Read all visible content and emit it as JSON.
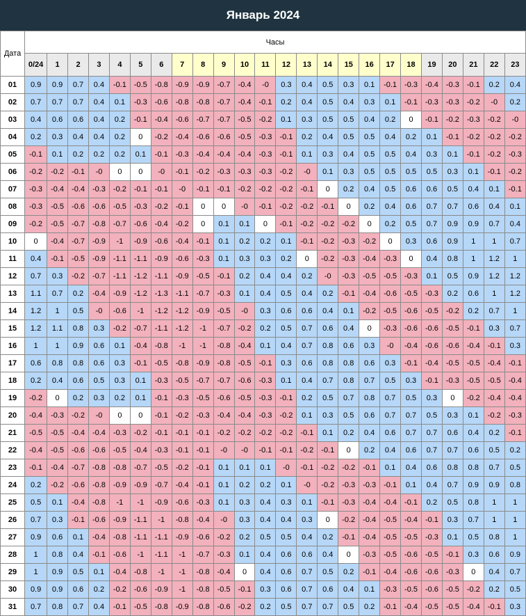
{
  "title": "Январь 2024",
  "date_header": "Дата",
  "hours_header": "Часы",
  "hours": [
    "0/24",
    "1",
    "2",
    "3",
    "4",
    "5",
    "6",
    "7",
    "8",
    "9",
    "10",
    "11",
    "12",
    "13",
    "14",
    "15",
    "16",
    "17",
    "18",
    "19",
    "20",
    "21",
    "22",
    "23"
  ],
  "highlighted_hours": [
    "7",
    "8",
    "9",
    "10",
    "11",
    "12",
    "13",
    "14",
    "15",
    "16",
    "17",
    "18"
  ],
  "colors": {
    "title_background": "#1f3440",
    "positive": "#b6d7f7",
    "negative": "#f2b1bc",
    "zero": "#ffffff",
    "highlight_hour": "#ffffcc",
    "hour_header": "#eaeaea"
  },
  "rows": [
    {
      "date": "01",
      "values": [
        "0.9",
        "0.9",
        "0.7",
        "0.4",
        "-0.1",
        "-0.5",
        "-0.8",
        "-0.9",
        "-0.9",
        "-0.7",
        "-0.4",
        "-0",
        "0.3",
        "0.4",
        "0.5",
        "0.3",
        "0.1",
        "-0.1",
        "-0.3",
        "-0.4",
        "-0.3",
        "-0.1",
        "0.2",
        "0.4"
      ]
    },
    {
      "date": "02",
      "values": [
        "0.7",
        "0.7",
        "0.7",
        "0.4",
        "0.1",
        "-0.3",
        "-0.6",
        "-0.8",
        "-0.8",
        "-0.7",
        "-0.4",
        "-0.1",
        "0.2",
        "0.4",
        "0.5",
        "0.4",
        "0.3",
        "0.1",
        "-0.1",
        "-0.3",
        "-0.3",
        "-0.2",
        "-0",
        "0.2"
      ]
    },
    {
      "date": "03",
      "values": [
        "0.4",
        "0.6",
        "0.6",
        "0.4",
        "0.2",
        "-0.1",
        "-0.4",
        "-0.6",
        "-0.7",
        "-0.7",
        "-0.5",
        "-0.2",
        "0.1",
        "0.3",
        "0.5",
        "0.5",
        "0.4",
        "0.2",
        "0",
        "-0.1",
        "-0.2",
        "-0.3",
        "-0.2",
        "-0"
      ]
    },
    {
      "date": "04",
      "values": [
        "0.2",
        "0.3",
        "0.4",
        "0.4",
        "0.2",
        "0",
        "-0.2",
        "-0.4",
        "-0.6",
        "-0.6",
        "-0.5",
        "-0.3",
        "-0.1",
        "0.2",
        "0.4",
        "0.5",
        "0.5",
        "0.4",
        "0.2",
        "0.1",
        "-0.1",
        "-0.2",
        "-0.2",
        "-0.2"
      ]
    },
    {
      "date": "05",
      "values": [
        "-0.1",
        "0.1",
        "0.2",
        "0.2",
        "0.2",
        "0.1",
        "-0.1",
        "-0.3",
        "-0.4",
        "-0.4",
        "-0.4",
        "-0.3",
        "-0.1",
        "0.1",
        "0.3",
        "0.4",
        "0.5",
        "0.5",
        "0.4",
        "0.3",
        "0.1",
        "-0.1",
        "-0.2",
        "-0.3"
      ]
    },
    {
      "date": "06",
      "values": [
        "-0.2",
        "-0.2",
        "-0.1",
        "-0",
        "0",
        "0",
        "-0",
        "-0.1",
        "-0.2",
        "-0.3",
        "-0.3",
        "-0.3",
        "-0.2",
        "-0",
        "0.1",
        "0.3",
        "0.5",
        "0.5",
        "0.5",
        "0.5",
        "0.3",
        "0.1",
        "-0.1",
        "-0.2"
      ]
    },
    {
      "date": "07",
      "values": [
        "-0.3",
        "-0.4",
        "-0.4",
        "-0.3",
        "-0.2",
        "-0.1",
        "-0.1",
        "-0",
        "-0.1",
        "-0.1",
        "-0.2",
        "-0.2",
        "-0.2",
        "-0.1",
        "0",
        "0.2",
        "0.4",
        "0.5",
        "0.6",
        "0.6",
        "0.5",
        "0.4",
        "0.1",
        "-0.1"
      ]
    },
    {
      "date": "08",
      "values": [
        "-0.3",
        "-0.5",
        "-0.6",
        "-0.6",
        "-0.5",
        "-0.3",
        "-0.2",
        "-0.1",
        "0",
        "0",
        "-0",
        "-0.1",
        "-0.2",
        "-0.2",
        "-0.1",
        "0",
        "0.2",
        "0.4",
        "0.6",
        "0.7",
        "0.7",
        "0.6",
        "0.4",
        "0.1"
      ]
    },
    {
      "date": "09",
      "values": [
        "-0.2",
        "-0.5",
        "-0.7",
        "-0.8",
        "-0.7",
        "-0.6",
        "-0.4",
        "-0.2",
        "0",
        "0.1",
        "0.1",
        "0",
        "-0.1",
        "-0.2",
        "-0.2",
        "-0.2",
        "0",
        "0.2",
        "0.5",
        "0.7",
        "0.9",
        "0.9",
        "0.7",
        "0.4"
      ]
    },
    {
      "date": "10",
      "values": [
        "0",
        "-0.4",
        "-0.7",
        "-0.9",
        "-1",
        "-0.9",
        "-0.6",
        "-0.4",
        "-0.1",
        "0.1",
        "0.2",
        "0.2",
        "0.1",
        "-0.1",
        "-0.2",
        "-0.3",
        "-0.2",
        "0",
        "0.3",
        "0.6",
        "0.9",
        "1",
        "1",
        "0.7"
      ]
    },
    {
      "date": "11",
      "values": [
        "0.4",
        "-0.1",
        "-0.5",
        "-0.9",
        "-1.1",
        "-1.1",
        "-0.9",
        "-0.6",
        "-0.3",
        "0.1",
        "0.3",
        "0.3",
        "0.2",
        "0",
        "-0.2",
        "-0.3",
        "-0.4",
        "-0.3",
        "0",
        "0.4",
        "0.8",
        "1",
        "1.2",
        "1"
      ]
    },
    {
      "date": "12",
      "values": [
        "0.7",
        "0.3",
        "-0.2",
        "-0.7",
        "-1.1",
        "-1.2",
        "-1.1",
        "-0.9",
        "-0.5",
        "-0.1",
        "0.2",
        "0.4",
        "0.4",
        "0.2",
        "-0",
        "-0.3",
        "-0.5",
        "-0.5",
        "-0.3",
        "0.1",
        "0.5",
        "0.9",
        "1.2",
        "1.2"
      ]
    },
    {
      "date": "13",
      "values": [
        "1.1",
        "0.7",
        "0.2",
        "-0.4",
        "-0.9",
        "-1.2",
        "-1.3",
        "-1.1",
        "-0.7",
        "-0.3",
        "0.1",
        "0.4",
        "0.5",
        "0.4",
        "0.2",
        "-0.1",
        "-0.4",
        "-0.6",
        "-0.5",
        "-0.3",
        "0.2",
        "0.6",
        "1",
        "1.2"
      ]
    },
    {
      "date": "14",
      "values": [
        "1.2",
        "1",
        "0.5",
        "-0",
        "-0.6",
        "-1",
        "-1.2",
        "-1.2",
        "-0.9",
        "-0.5",
        "-0",
        "0.3",
        "0.6",
        "0.6",
        "0.4",
        "0.1",
        "-0.2",
        "-0.5",
        "-0.6",
        "-0.5",
        "-0.2",
        "0.2",
        "0.7",
        "1"
      ]
    },
    {
      "date": "15",
      "values": [
        "1.2",
        "1.1",
        "0.8",
        "0.3",
        "-0.2",
        "-0.7",
        "-1.1",
        "-1.2",
        "-1",
        "-0.7",
        "-0.2",
        "0.2",
        "0.5",
        "0.7",
        "0.6",
        "0.4",
        "0",
        "-0.3",
        "-0.6",
        "-0.6",
        "-0.5",
        "-0.1",
        "0.3",
        "0.7"
      ]
    },
    {
      "date": "16",
      "values": [
        "1",
        "1",
        "0.9",
        "0.6",
        "0.1",
        "-0.4",
        "-0.8",
        "-1",
        "-1",
        "-0.8",
        "-0.4",
        "0.1",
        "0.4",
        "0.7",
        "0.8",
        "0.6",
        "0.3",
        "-0",
        "-0.4",
        "-0.6",
        "-0.6",
        "-0.4",
        "-0.1",
        "0.3"
      ]
    },
    {
      "date": "17",
      "values": [
        "0.6",
        "0.8",
        "0.8",
        "0.6",
        "0.3",
        "-0.1",
        "-0.5",
        "-0.8",
        "-0.9",
        "-0.8",
        "-0.5",
        "-0.1",
        "0.3",
        "0.6",
        "0.8",
        "0.8",
        "0.6",
        "0.3",
        "-0.1",
        "-0.4",
        "-0.5",
        "-0.5",
        "-0.4",
        "-0.1"
      ]
    },
    {
      "date": "18",
      "values": [
        "0.2",
        "0.4",
        "0.6",
        "0.5",
        "0.3",
        "0.1",
        "-0.3",
        "-0.5",
        "-0.7",
        "-0.7",
        "-0.6",
        "-0.3",
        "0.1",
        "0.4",
        "0.7",
        "0.8",
        "0.7",
        "0.5",
        "0.3",
        "-0.1",
        "-0.3",
        "-0.5",
        "-0.5",
        "-0.4"
      ]
    },
    {
      "date": "19",
      "values": [
        "-0.2",
        "0",
        "0.2",
        "0.3",
        "0.2",
        "0.1",
        "-0.1",
        "-0.3",
        "-0.5",
        "-0.6",
        "-0.5",
        "-0.3",
        "-0.1",
        "0.2",
        "0.5",
        "0.7",
        "0.8",
        "0.7",
        "0.5",
        "0.3",
        "0",
        "-0.2",
        "-0.4",
        "-0.4"
      ]
    },
    {
      "date": "20",
      "values": [
        "-0.4",
        "-0.3",
        "-0.2",
        "-0",
        "0",
        "0",
        "-0.1",
        "-0.2",
        "-0.3",
        "-0.4",
        "-0.4",
        "-0.3",
        "-0.2",
        "0.1",
        "0.3",
        "0.5",
        "0.6",
        "0.7",
        "0.7",
        "0.5",
        "0.3",
        "0.1",
        "-0.2",
        "-0.3"
      ]
    },
    {
      "date": "21",
      "values": [
        "-0.5",
        "-0.5",
        "-0.4",
        "-0.4",
        "-0.3",
        "-0.2",
        "-0.1",
        "-0.1",
        "-0.1",
        "-0.2",
        "-0.2",
        "-0.2",
        "-0.2",
        "-0.1",
        "0.1",
        "0.2",
        "0.4",
        "0.6",
        "0.7",
        "0.7",
        "0.6",
        "0.4",
        "0.2",
        "-0.1"
      ]
    },
    {
      "date": "22",
      "values": [
        "-0.4",
        "-0.5",
        "-0.6",
        "-0.6",
        "-0.5",
        "-0.4",
        "-0.3",
        "-0.1",
        "-0.1",
        "-0",
        "-0",
        "-0.1",
        "-0.1",
        "-0.2",
        "-0.1",
        "0",
        "0.2",
        "0.4",
        "0.6",
        "0.7",
        "0.7",
        "0.6",
        "0.5",
        "0.2"
      ]
    },
    {
      "date": "23",
      "values": [
        "-0.1",
        "-0.4",
        "-0.7",
        "-0.8",
        "-0.8",
        "-0.7",
        "-0.5",
        "-0.2",
        "-0.1",
        "0.1",
        "0.1",
        "0.1",
        "-0",
        "-0.1",
        "-0.2",
        "-0.2",
        "-0.1",
        "0.1",
        "0.4",
        "0.6",
        "0.8",
        "0.8",
        "0.7",
        "0.5"
      ]
    },
    {
      "date": "24",
      "values": [
        "0.2",
        "-0.2",
        "-0.6",
        "-0.8",
        "-0.9",
        "-0.9",
        "-0.7",
        "-0.4",
        "-0.1",
        "0.1",
        "0.2",
        "0.2",
        "0.1",
        "-0",
        "-0.2",
        "-0.3",
        "-0.3",
        "-0.1",
        "0.1",
        "0.4",
        "0.7",
        "0.9",
        "0.9",
        "0.8"
      ]
    },
    {
      "date": "25",
      "values": [
        "0.5",
        "0.1",
        "-0.4",
        "-0.8",
        "-1",
        "-1",
        "-0.9",
        "-0.6",
        "-0.3",
        "0.1",
        "0.3",
        "0.4",
        "0.3",
        "0.1",
        "-0.1",
        "-0.3",
        "-0.4",
        "-0.4",
        "-0.1",
        "0.2",
        "0.5",
        "0.8",
        "1",
        "1"
      ]
    },
    {
      "date": "26",
      "values": [
        "0.7",
        "0.3",
        "-0.1",
        "-0.6",
        "-0.9",
        "-1.1",
        "-1",
        "-0.8",
        "-0.4",
        "-0",
        "0.3",
        "0.4",
        "0.4",
        "0.3",
        "0",
        "-0.2",
        "-0.4",
        "-0.5",
        "-0.4",
        "-0.1",
        "0.3",
        "0.7",
        "1",
        "1"
      ]
    },
    {
      "date": "27",
      "values": [
        "0.9",
        "0.6",
        "0.1",
        "-0.4",
        "-0.8",
        "-1.1",
        "-1.1",
        "-0.9",
        "-0.6",
        "-0.2",
        "0.2",
        "0.5",
        "0.5",
        "0.4",
        "0.2",
        "-0.1",
        "-0.4",
        "-0.5",
        "-0.5",
        "-0.3",
        "0.1",
        "0.5",
        "0.8",
        "1"
      ]
    },
    {
      "date": "28",
      "values": [
        "1",
        "0.8",
        "0.4",
        "-0.1",
        "-0.6",
        "-1",
        "-1.1",
        "-1",
        "-0.7",
        "-0.3",
        "0.1",
        "0.4",
        "0.6",
        "0.6",
        "0.4",
        "0",
        "-0.3",
        "-0.5",
        "-0.6",
        "-0.5",
        "-0.1",
        "0.3",
        "0.6",
        "0.9"
      ]
    },
    {
      "date": "29",
      "values": [
        "1",
        "0.9",
        "0.5",
        "0.1",
        "-0.4",
        "-0.8",
        "-1",
        "-1",
        "-0.8",
        "-0.4",
        "0",
        "0.4",
        "0.6",
        "0.7",
        "0.5",
        "0.2",
        "-0.1",
        "-0.4",
        "-0.6",
        "-0.6",
        "-0.3",
        "0",
        "0.4",
        "0.7"
      ]
    },
    {
      "date": "30",
      "values": [
        "0.9",
        "0.9",
        "0.6",
        "0.2",
        "-0.2",
        "-0.6",
        "-0.9",
        "-1",
        "-0.8",
        "-0.5",
        "-0.1",
        "0.3",
        "0.6",
        "0.7",
        "0.6",
        "0.4",
        "0.1",
        "-0.3",
        "-0.5",
        "-0.6",
        "-0.5",
        "-0.2",
        "0.2",
        "0.5"
      ]
    },
    {
      "date": "31",
      "values": [
        "0.7",
        "0.8",
        "0.7",
        "0.4",
        "-0.1",
        "-0.5",
        "-0.8",
        "-0.9",
        "-0.8",
        "-0.6",
        "-0.2",
        "0.2",
        "0.5",
        "0.7",
        "0.7",
        "0.5",
        "0.2",
        "-0.1",
        "-0.4",
        "-0.5",
        "-0.5",
        "-0.4",
        "-0.1",
        "0.3"
      ]
    }
  ]
}
